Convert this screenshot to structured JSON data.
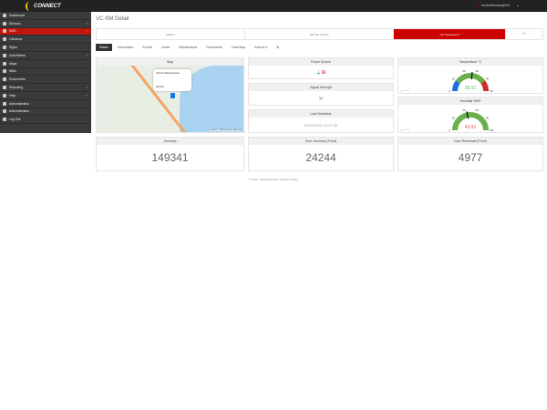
{
  "app": {
    "logo": "CONNECT",
    "user": "mroberthomas@VIC"
  },
  "sidebar": {
    "items": [
      {
        "label": "Dashboard",
        "chev": false
      },
      {
        "label": "Sensors",
        "chev": true
      },
      {
        "label": "VMS",
        "chev": true,
        "active": true
      },
      {
        "label": "Cameras",
        "chev": false
      },
      {
        "label": "Signs",
        "chev": false
      },
      {
        "label": "AutoSellers",
        "chev": true
      },
      {
        "label": "Maps",
        "chev": false
      },
      {
        "label": "Sites",
        "chev": false
      },
      {
        "label": "Documents",
        "chev": false
      },
      {
        "label": "Reporting",
        "chev": true
      },
      {
        "label": "Help",
        "chev": true
      },
      {
        "label": "Administration",
        "chev": false
      },
      {
        "label": "Administration",
        "chev": false
      },
      {
        "label": "Log Out",
        "chev": false
      }
    ]
  },
  "page": {
    "title": "VC-SM Detail"
  },
  "statusbar": {
    "name": "Marlun",
    "model": "VM Taxi (VKLS)",
    "status": "Not Operational",
    "status_color": "#c00000",
    "signal_icon": "wifi-icon"
  },
  "tabs": [
    "Status",
    "Information",
    "Events",
    "Notes",
    "Maintenance",
    "Documents",
    "Heat Map",
    "Actions ▾",
    "⧉"
  ],
  "map": {
    "title": "Map",
    "popup_line1": "Victoria Wetherstrasse",
    "popup_line2": "DM SLT",
    "attribution": "Leaflet | © SMS TopTools, Microsoft"
  },
  "power": {
    "title": "Power Source",
    "icons": [
      "plug-icon",
      "battery-icon"
    ]
  },
  "signal": {
    "title": "Signal Strength",
    "icon": "no-signal-icon"
  },
  "heartbeat": {
    "title": "Last Heartbeat",
    "value": "20/02/2024 10:27:30"
  },
  "temperature": {
    "title": "Temperature °C",
    "value": "26.51",
    "value_num": 26.51,
    "min": 0,
    "max": 50,
    "ticks": [
      "0",
      "10",
      "20",
      "30",
      "40",
      "50"
    ],
    "value_color": "#5cb85c"
  },
  "humidity": {
    "title": "Humidity %RH",
    "value": "43.91",
    "value_num": 43.91,
    "min": 0,
    "max": 100,
    "ticks": [
      "0",
      "20",
      "40",
      "60",
      "80",
      "100"
    ],
    "value_color": "#d9534f"
  },
  "counters": [
    {
      "title": "Journeys",
      "value": "149341"
    },
    {
      "title": "Door Journeys (Front)",
      "value": "24244"
    },
    {
      "title": "Door Reversals (Front)",
      "value": "4977"
    }
  ],
  "footer": "© 2024 - DMS Anywhere | Privacy Policy"
}
